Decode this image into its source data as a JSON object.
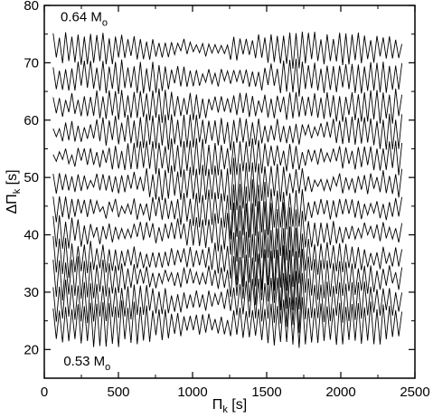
{
  "chart_data": {
    "type": "line",
    "title": "",
    "xlabel": {
      "main": "Π",
      "sub": "k",
      "unit": " [s]"
    },
    "ylabel": {
      "main": "ΔΠ",
      "sub": "k",
      "unit": " [s]"
    },
    "xlim": [
      0,
      2500
    ],
    "ylim": [
      15,
      80
    ],
    "xticks": [
      0,
      500,
      1000,
      1500,
      2000,
      2500
    ],
    "yticks": [
      20,
      30,
      40,
      50,
      60,
      70,
      80
    ],
    "grid": false,
    "line_color": "#000000",
    "annotations": [
      {
        "id": "top-mass",
        "main": "0.64 M",
        "sub": "o",
        "x": 110,
        "y": 77.2
      },
      {
        "id": "bottom-mass",
        "main": "0.53 M",
        "sub": "o",
        "x": 130,
        "y": 17.2
      }
    ],
    "series_note": "12 stacked period-spacing curves from 0.53 to 0.64 solar masses, each offset vertically",
    "series": [
      {
        "x0": 60,
        "dx": 21,
        "n": 113,
        "base": 24.5,
        "amp": 3.2,
        "phase": 0.0
      },
      {
        "x0": 60,
        "dx": 21,
        "n": 113,
        "base": 28.5,
        "amp": 3.0,
        "phase": 0.6
      },
      {
        "x0": 60,
        "dx": 21,
        "n": 113,
        "base": 32.5,
        "amp": 3.0,
        "phase": 1.2
      },
      {
        "x0": 60,
        "dx": 21,
        "n": 113,
        "base": 36.0,
        "amp": 2.9,
        "phase": 1.8
      },
      {
        "x0": 60,
        "dx": 21,
        "n": 113,
        "base": 40.5,
        "amp": 2.8,
        "phase": 2.4
      },
      {
        "x0": 60,
        "dx": 21,
        "n": 113,
        "base": 44.5,
        "amp": 2.7,
        "phase": 3.0
      },
      {
        "x0": 60,
        "dx": 21,
        "n": 113,
        "base": 49.0,
        "amp": 2.6,
        "phase": 3.6
      },
      {
        "x0": 60,
        "dx": 21,
        "n": 113,
        "base": 53.5,
        "amp": 2.5,
        "phase": 4.2
      },
      {
        "x0": 60,
        "dx": 21,
        "n": 113,
        "base": 58.0,
        "amp": 2.4,
        "phase": 4.8
      },
      {
        "x0": 60,
        "dx": 21,
        "n": 113,
        "base": 62.5,
        "amp": 2.3,
        "phase": 5.4
      },
      {
        "x0": 60,
        "dx": 21,
        "n": 113,
        "base": 67.5,
        "amp": 2.2,
        "phase": 6.0
      },
      {
        "x0": 60,
        "dx": 21,
        "n": 113,
        "base": 72.5,
        "amp": 2.1,
        "phase": 6.6
      }
    ]
  }
}
